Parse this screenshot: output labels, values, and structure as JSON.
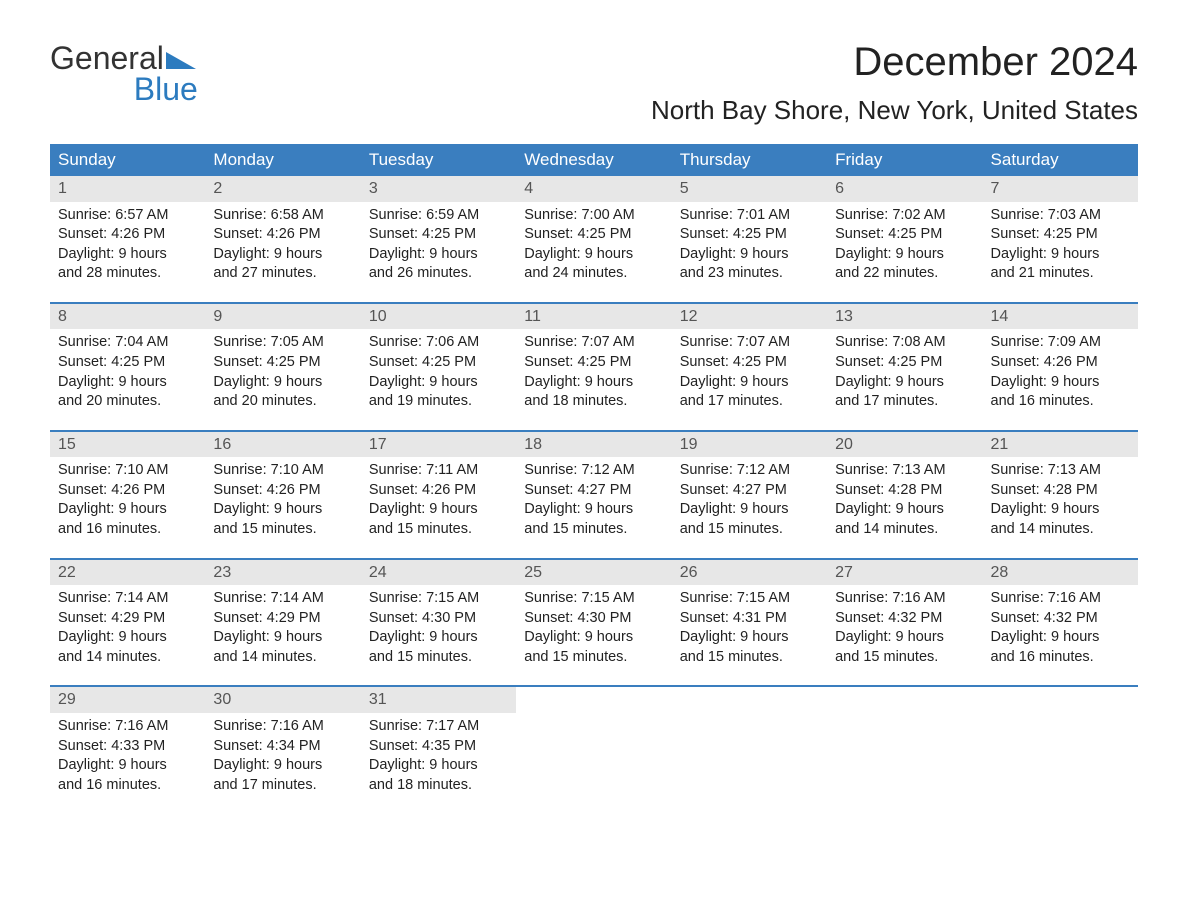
{
  "logo": {
    "line1": "General",
    "line2": "Blue",
    "accent_color": "#2c7bbf"
  },
  "title": "December 2024",
  "location": "North Bay Shore, New York, United States",
  "colors": {
    "header_bg": "#3a7ebf",
    "header_text": "#ffffff",
    "daynum_bg": "#e7e7e7",
    "daynum_text": "#555555",
    "body_text": "#222222",
    "week_border": "#3a7ebf",
    "page_bg": "#ffffff"
  },
  "day_headers": [
    "Sunday",
    "Monday",
    "Tuesday",
    "Wednesday",
    "Thursday",
    "Friday",
    "Saturday"
  ],
  "weeks": [
    [
      {
        "n": "1",
        "sr": "Sunrise: 6:57 AM",
        "ss": "Sunset: 4:26 PM",
        "d1": "Daylight: 9 hours",
        "d2": "and 28 minutes."
      },
      {
        "n": "2",
        "sr": "Sunrise: 6:58 AM",
        "ss": "Sunset: 4:26 PM",
        "d1": "Daylight: 9 hours",
        "d2": "and 27 minutes."
      },
      {
        "n": "3",
        "sr": "Sunrise: 6:59 AM",
        "ss": "Sunset: 4:25 PM",
        "d1": "Daylight: 9 hours",
        "d2": "and 26 minutes."
      },
      {
        "n": "4",
        "sr": "Sunrise: 7:00 AM",
        "ss": "Sunset: 4:25 PM",
        "d1": "Daylight: 9 hours",
        "d2": "and 24 minutes."
      },
      {
        "n": "5",
        "sr": "Sunrise: 7:01 AM",
        "ss": "Sunset: 4:25 PM",
        "d1": "Daylight: 9 hours",
        "d2": "and 23 minutes."
      },
      {
        "n": "6",
        "sr": "Sunrise: 7:02 AM",
        "ss": "Sunset: 4:25 PM",
        "d1": "Daylight: 9 hours",
        "d2": "and 22 minutes."
      },
      {
        "n": "7",
        "sr": "Sunrise: 7:03 AM",
        "ss": "Sunset: 4:25 PM",
        "d1": "Daylight: 9 hours",
        "d2": "and 21 minutes."
      }
    ],
    [
      {
        "n": "8",
        "sr": "Sunrise: 7:04 AM",
        "ss": "Sunset: 4:25 PM",
        "d1": "Daylight: 9 hours",
        "d2": "and 20 minutes."
      },
      {
        "n": "9",
        "sr": "Sunrise: 7:05 AM",
        "ss": "Sunset: 4:25 PM",
        "d1": "Daylight: 9 hours",
        "d2": "and 20 minutes."
      },
      {
        "n": "10",
        "sr": "Sunrise: 7:06 AM",
        "ss": "Sunset: 4:25 PM",
        "d1": "Daylight: 9 hours",
        "d2": "and 19 minutes."
      },
      {
        "n": "11",
        "sr": "Sunrise: 7:07 AM",
        "ss": "Sunset: 4:25 PM",
        "d1": "Daylight: 9 hours",
        "d2": "and 18 minutes."
      },
      {
        "n": "12",
        "sr": "Sunrise: 7:07 AM",
        "ss": "Sunset: 4:25 PM",
        "d1": "Daylight: 9 hours",
        "d2": "and 17 minutes."
      },
      {
        "n": "13",
        "sr": "Sunrise: 7:08 AM",
        "ss": "Sunset: 4:25 PM",
        "d1": "Daylight: 9 hours",
        "d2": "and 17 minutes."
      },
      {
        "n": "14",
        "sr": "Sunrise: 7:09 AM",
        "ss": "Sunset: 4:26 PM",
        "d1": "Daylight: 9 hours",
        "d2": "and 16 minutes."
      }
    ],
    [
      {
        "n": "15",
        "sr": "Sunrise: 7:10 AM",
        "ss": "Sunset: 4:26 PM",
        "d1": "Daylight: 9 hours",
        "d2": "and 16 minutes."
      },
      {
        "n": "16",
        "sr": "Sunrise: 7:10 AM",
        "ss": "Sunset: 4:26 PM",
        "d1": "Daylight: 9 hours",
        "d2": "and 15 minutes."
      },
      {
        "n": "17",
        "sr": "Sunrise: 7:11 AM",
        "ss": "Sunset: 4:26 PM",
        "d1": "Daylight: 9 hours",
        "d2": "and 15 minutes."
      },
      {
        "n": "18",
        "sr": "Sunrise: 7:12 AM",
        "ss": "Sunset: 4:27 PM",
        "d1": "Daylight: 9 hours",
        "d2": "and 15 minutes."
      },
      {
        "n": "19",
        "sr": "Sunrise: 7:12 AM",
        "ss": "Sunset: 4:27 PM",
        "d1": "Daylight: 9 hours",
        "d2": "and 15 minutes."
      },
      {
        "n": "20",
        "sr": "Sunrise: 7:13 AM",
        "ss": "Sunset: 4:28 PM",
        "d1": "Daylight: 9 hours",
        "d2": "and 14 minutes."
      },
      {
        "n": "21",
        "sr": "Sunrise: 7:13 AM",
        "ss": "Sunset: 4:28 PM",
        "d1": "Daylight: 9 hours",
        "d2": "and 14 minutes."
      }
    ],
    [
      {
        "n": "22",
        "sr": "Sunrise: 7:14 AM",
        "ss": "Sunset: 4:29 PM",
        "d1": "Daylight: 9 hours",
        "d2": "and 14 minutes."
      },
      {
        "n": "23",
        "sr": "Sunrise: 7:14 AM",
        "ss": "Sunset: 4:29 PM",
        "d1": "Daylight: 9 hours",
        "d2": "and 14 minutes."
      },
      {
        "n": "24",
        "sr": "Sunrise: 7:15 AM",
        "ss": "Sunset: 4:30 PM",
        "d1": "Daylight: 9 hours",
        "d2": "and 15 minutes."
      },
      {
        "n": "25",
        "sr": "Sunrise: 7:15 AM",
        "ss": "Sunset: 4:30 PM",
        "d1": "Daylight: 9 hours",
        "d2": "and 15 minutes."
      },
      {
        "n": "26",
        "sr": "Sunrise: 7:15 AM",
        "ss": "Sunset: 4:31 PM",
        "d1": "Daylight: 9 hours",
        "d2": "and 15 minutes."
      },
      {
        "n": "27",
        "sr": "Sunrise: 7:16 AM",
        "ss": "Sunset: 4:32 PM",
        "d1": "Daylight: 9 hours",
        "d2": "and 15 minutes."
      },
      {
        "n": "28",
        "sr": "Sunrise: 7:16 AM",
        "ss": "Sunset: 4:32 PM",
        "d1": "Daylight: 9 hours",
        "d2": "and 16 minutes."
      }
    ],
    [
      {
        "n": "29",
        "sr": "Sunrise: 7:16 AM",
        "ss": "Sunset: 4:33 PM",
        "d1": "Daylight: 9 hours",
        "d2": "and 16 minutes."
      },
      {
        "n": "30",
        "sr": "Sunrise: 7:16 AM",
        "ss": "Sunset: 4:34 PM",
        "d1": "Daylight: 9 hours",
        "d2": "and 17 minutes."
      },
      {
        "n": "31",
        "sr": "Sunrise: 7:17 AM",
        "ss": "Sunset: 4:35 PM",
        "d1": "Daylight: 9 hours",
        "d2": "and 18 minutes."
      },
      {
        "empty": true
      },
      {
        "empty": true
      },
      {
        "empty": true
      },
      {
        "empty": true
      }
    ]
  ]
}
